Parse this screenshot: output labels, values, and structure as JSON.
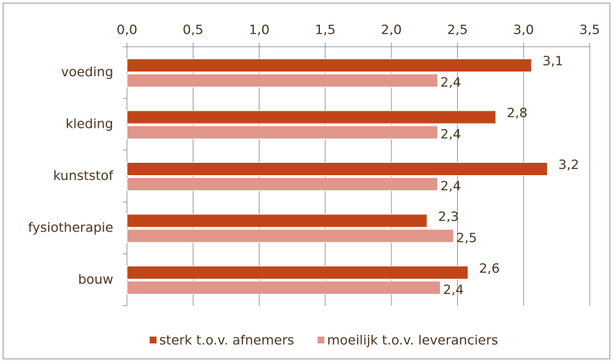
{
  "chart_data": {
    "type": "bar",
    "orientation": "horizontal",
    "categories": [
      "voeding",
      "kleding",
      "kunststof",
      "fysiotherapie",
      "bouw"
    ],
    "series": [
      {
        "name": "sterk t.o.v. afnemers",
        "color": "#c0461a",
        "values": [
          3.06,
          2.79,
          3.18,
          2.27,
          2.58
        ],
        "value_labels": [
          "3,1",
          "2,8",
          "3,2",
          "2,3",
          "2,6"
        ]
      },
      {
        "name": "moeilijk t.o.v. leveranciers",
        "color": "#e0968a",
        "values": [
          2.35,
          2.35,
          2.35,
          2.47,
          2.37
        ],
        "value_labels": [
          "2,4",
          "2,4",
          "2,4",
          "2,5",
          "2,4"
        ]
      }
    ],
    "xlim": [
      0,
      3.5
    ],
    "xticks": [
      {
        "value": 0,
        "label": "0,0"
      },
      {
        "value": 0.5,
        "label": "0,5"
      },
      {
        "value": 1,
        "label": "1,0"
      },
      {
        "value": 1.5,
        "label": "1,5"
      },
      {
        "value": 2,
        "label": "2,0"
      },
      {
        "value": 2.5,
        "label": "2,5"
      },
      {
        "value": 3,
        "label": "3,0"
      },
      {
        "value": 3.5,
        "label": "3,5"
      }
    ],
    "grid": true,
    "legend": "bottom"
  }
}
